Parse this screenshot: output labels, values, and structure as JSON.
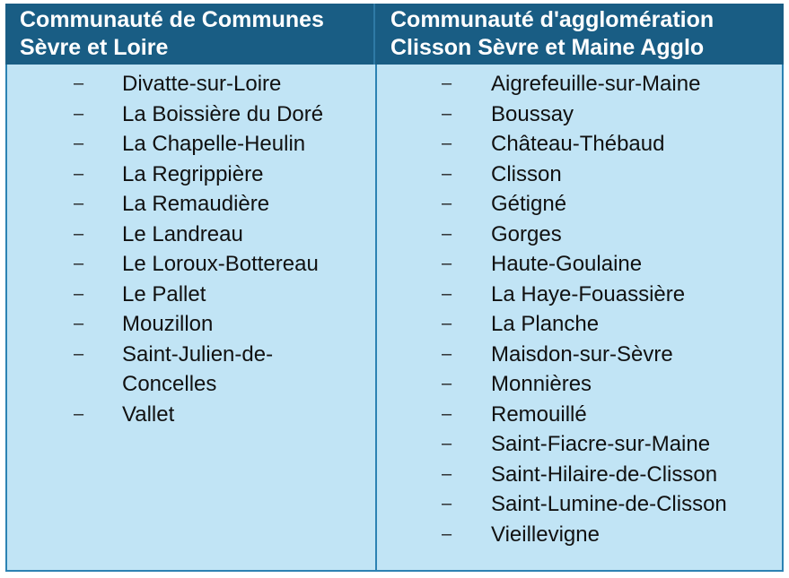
{
  "table": {
    "left_header": "Communauté de Communes\nSèvre et Loire",
    "right_header": "Communauté d'agglomération\nClisson Sèvre et Maine Agglo",
    "bullet": "–",
    "left_items": [
      "Divatte-sur-Loire",
      "La Boissière du Doré",
      "La Chapelle-Heulin",
      "La Regrippière",
      "La Remaudière",
      "Le Landreau",
      "Le Loroux-Bottereau",
      "Le Pallet",
      "Mouzillon",
      "Saint-Julien-de-\nConcelles",
      "Vallet"
    ],
    "right_items": [
      "Aigrefeuille-sur-Maine",
      "Boussay",
      "Château-Thébaud",
      "Clisson",
      "Gétigné",
      "Gorges",
      "Haute-Goulaine",
      "La Haye-Fouassière",
      "La Planche",
      "Maisdon-sur-Sèvre",
      "Monnières",
      "Remouillé",
      "Saint-Fiacre-sur-Maine",
      "Saint-Hilaire-de-Clisson",
      "Saint-Lumine-de-Clisson",
      "Vieillevigne"
    ]
  },
  "colors": {
    "header_bg": "#195d84",
    "body_bg": "#c1e4f5",
    "border": "#2c82b3"
  }
}
